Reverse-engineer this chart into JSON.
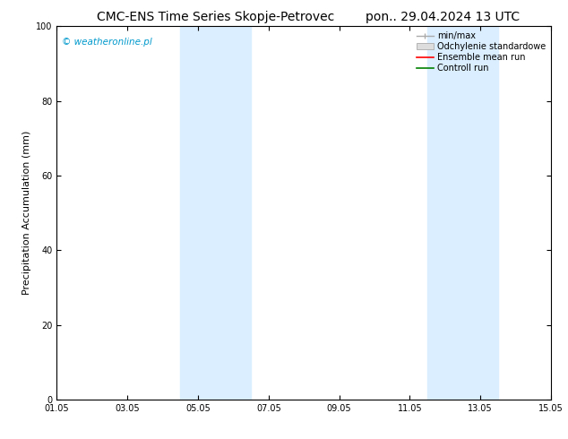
{
  "title_left": "CMC-ENS Time Series Skopje-Petrovec",
  "title_right": "pon.. 29.04.2024 13 UTC",
  "ylabel": "Precipitation Accumulation (mm)",
  "ylim": [
    0,
    100
  ],
  "yticks": [
    0,
    20,
    40,
    60,
    80,
    100
  ],
  "xlim_num": [
    0,
    14
  ],
  "xtick_labels": [
    "01.05",
    "03.05",
    "05.05",
    "07.05",
    "09.05",
    "11.05",
    "13.05",
    "15.05"
  ],
  "xtick_positions": [
    0,
    2,
    4,
    6,
    8,
    10,
    12,
    14
  ],
  "watermark": "© weatheronline.pl",
  "watermark_color": "#0099cc",
  "bg_color": "#ffffff",
  "plot_bg_color": "#ffffff",
  "shaded_regions": [
    {
      "xmin": 3.5,
      "xmax": 4.5,
      "color": "#daeeff",
      "alpha": 1.0
    },
    {
      "xmin": 4.5,
      "xmax": 5.5,
      "color": "#daeeff",
      "alpha": 1.0
    },
    {
      "xmin": 10.5,
      "xmax": 11.5,
      "color": "#daeeff",
      "alpha": 1.0
    },
    {
      "xmin": 11.5,
      "xmax": 12.5,
      "color": "#daeeff",
      "alpha": 1.0
    }
  ],
  "legend_entries": [
    {
      "label": "min/max",
      "color": "#aaaaaa",
      "type": "errorbar"
    },
    {
      "label": "Odchylenie standardowe",
      "color": "#cccccc",
      "type": "fill"
    },
    {
      "label": "Ensemble mean run",
      "color": "#ff0000",
      "type": "line"
    },
    {
      "label": "Controll run",
      "color": "#008000",
      "type": "line"
    }
  ],
  "title_fontsize": 10,
  "tick_fontsize": 7,
  "ylabel_fontsize": 8,
  "legend_fontsize": 7
}
